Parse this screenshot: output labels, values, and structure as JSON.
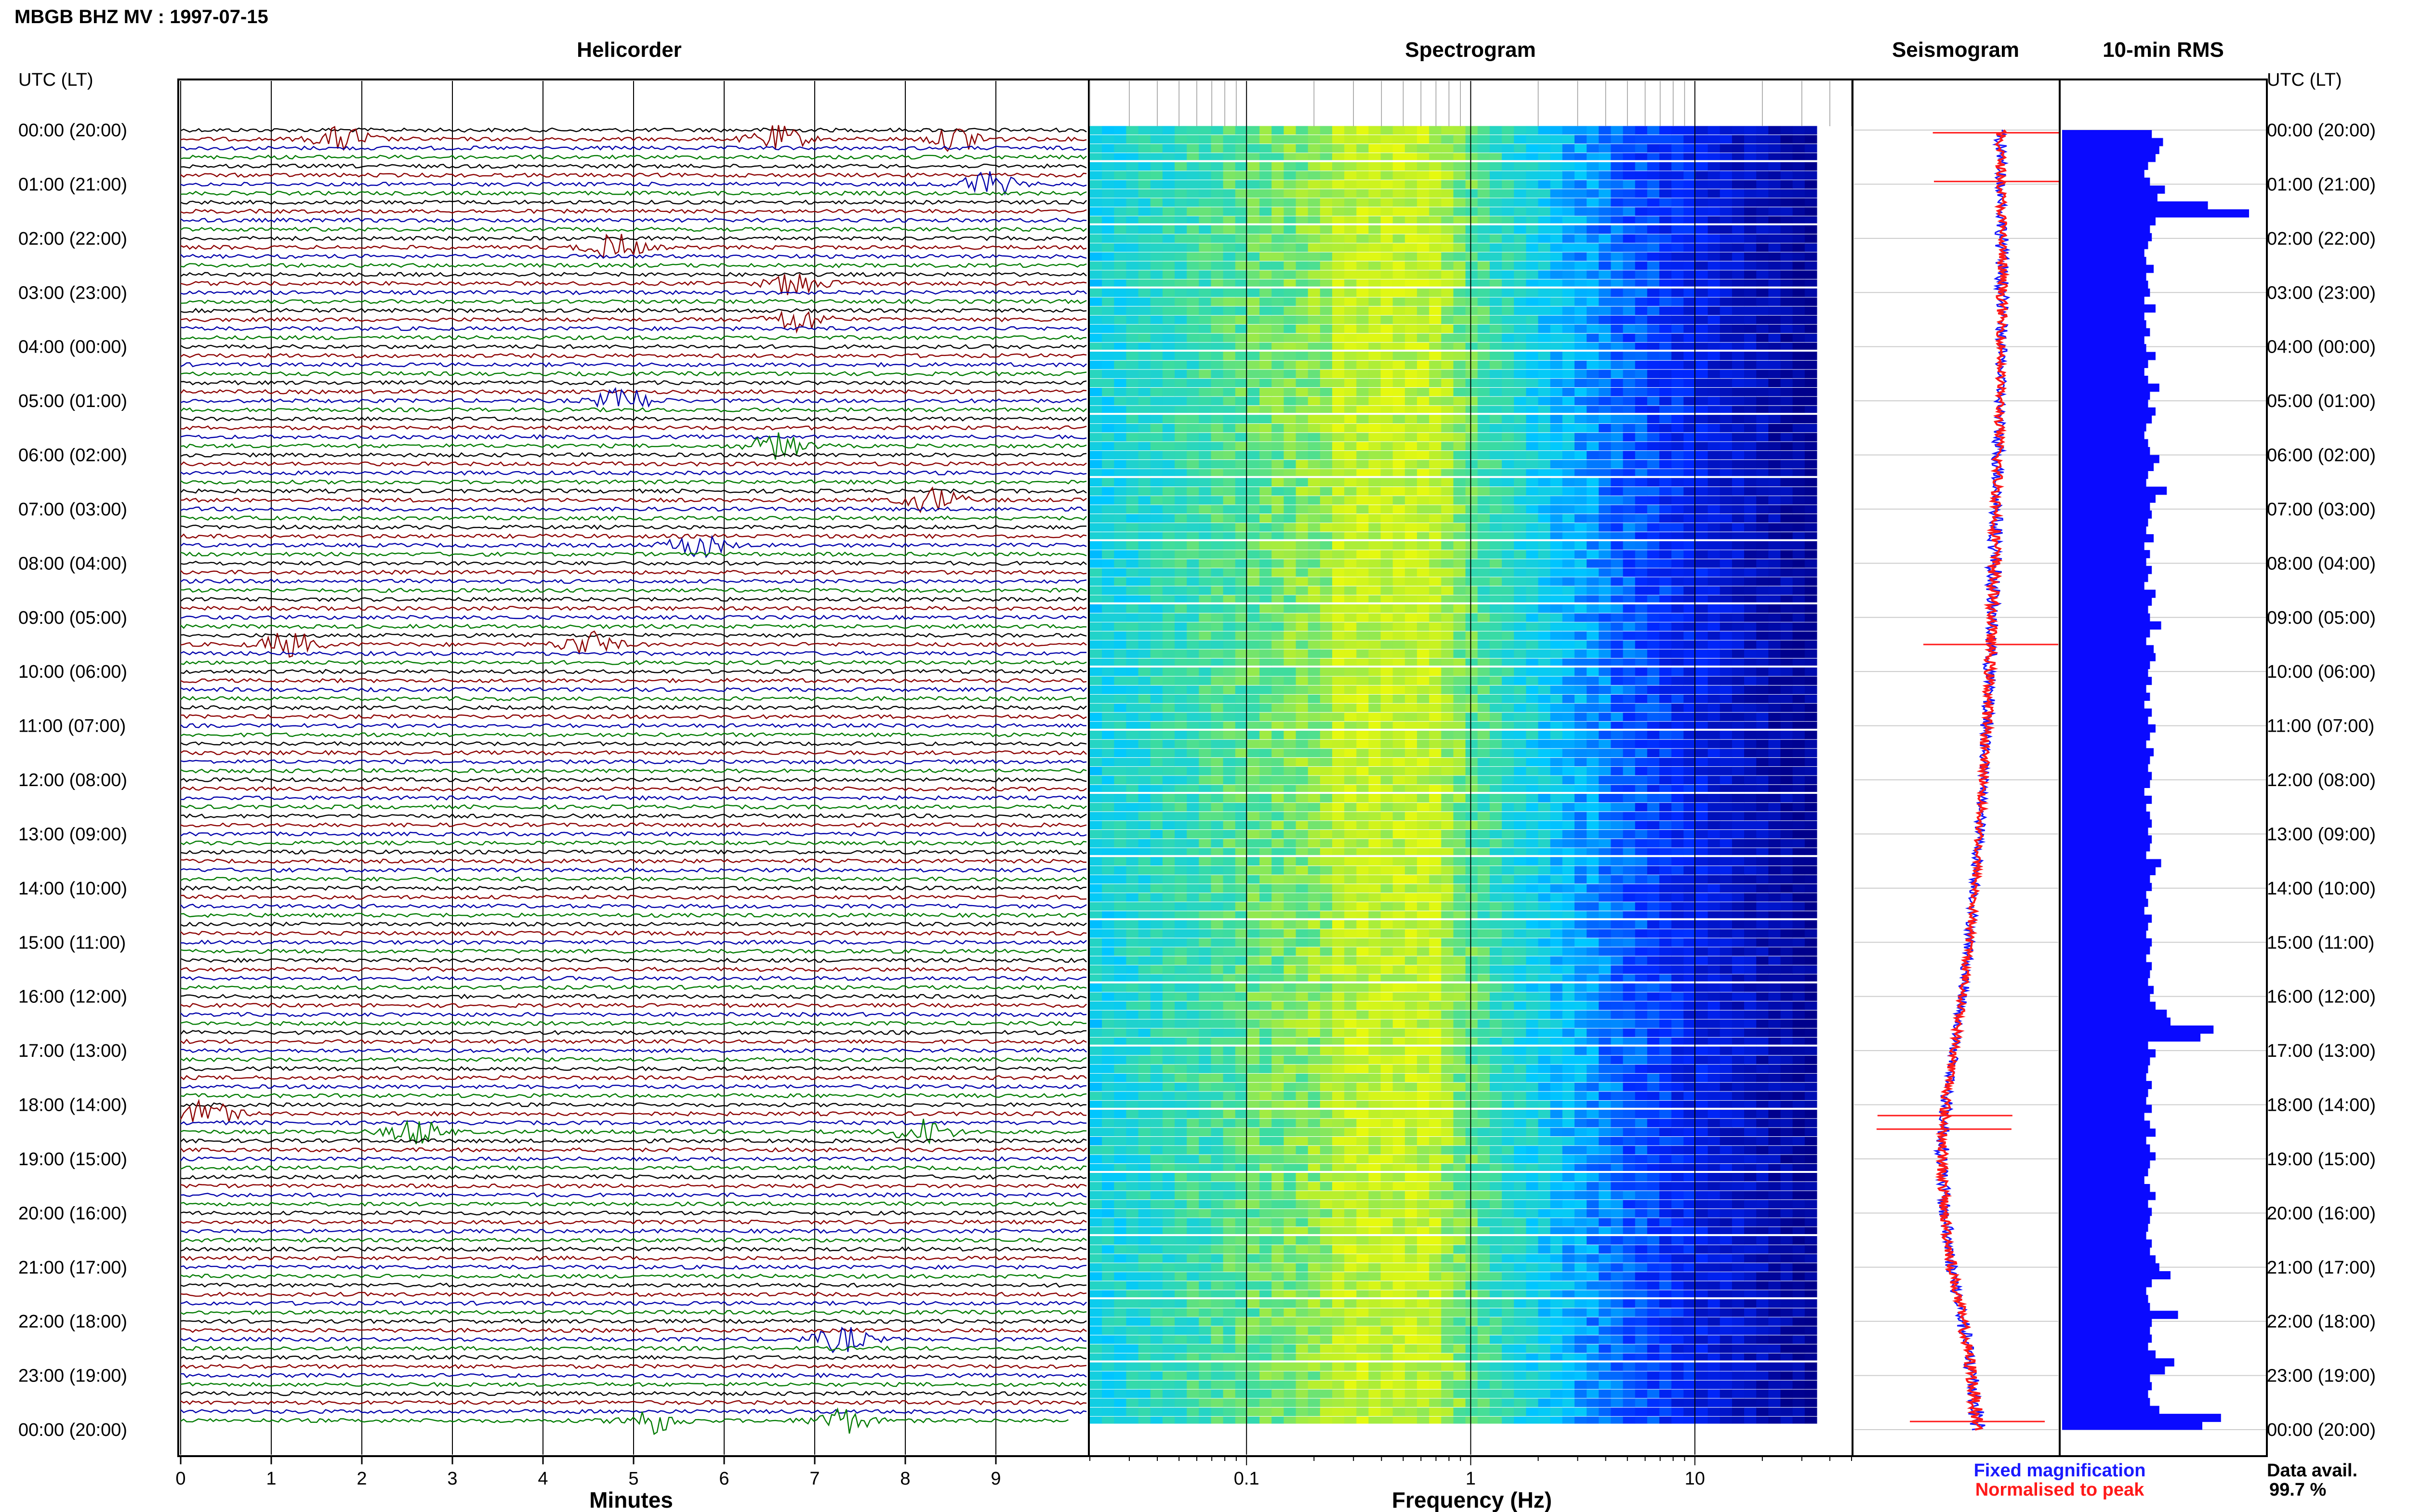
{
  "header": {
    "title": "MBGB BHZ MV : 1997-07-15",
    "utc_label_left": "UTC (LT)",
    "utc_label_right": "UTC (LT)"
  },
  "panels": {
    "helicorder": "Helicorder",
    "spectrogram": "Spectrogram",
    "seismogram": "Seismogram",
    "rms": "10-min RMS"
  },
  "time_labels": [
    "00:00 (20:00)",
    "01:00 (21:00)",
    "02:00 (22:00)",
    "03:00 (23:00)",
    "04:00 (00:00)",
    "05:00 (01:00)",
    "06:00 (02:00)",
    "07:00 (03:00)",
    "08:00 (04:00)",
    "09:00 (05:00)",
    "10:00 (06:00)",
    "11:00 (07:00)",
    "12:00 (08:00)",
    "13:00 (09:00)",
    "14:00 (10:00)",
    "15:00 (11:00)",
    "16:00 (12:00)",
    "17:00 (13:00)",
    "18:00 (14:00)",
    "19:00 (15:00)",
    "20:00 (16:00)",
    "21:00 (17:00)",
    "22:00 (18:00)",
    "23:00 (19:00)",
    "00:00 (20:00)"
  ],
  "helicorder_axis": {
    "ticks": [
      "0",
      "1",
      "2",
      "3",
      "4",
      "5",
      "6",
      "7",
      "8",
      "9"
    ],
    "label": "Minutes"
  },
  "spectrogram_axis": {
    "ticks": [
      "0.1",
      "1",
      "10"
    ],
    "label": "Frequency (Hz)",
    "scale": "log"
  },
  "legend": {
    "fixed": "Fixed magnification",
    "normalised": "Normalised to peak",
    "fixed_color": "#1a1aff",
    "normalised_color": "#ff1a1a"
  },
  "data_avail": {
    "label": "Data avail.",
    "value": "99.7 %"
  },
  "colors": {
    "trace_colors": [
      "#000000",
      "#8b0000",
      "#0000aa",
      "#007a00"
    ],
    "rms_bar": "#0a0aff",
    "spectro_low": "#00008b",
    "spectro_high": "#ffff00"
  },
  "chart_data": [
    {
      "type": "line",
      "title": "Helicorder",
      "xlabel": "Minutes",
      "xlim": [
        0,
        10
      ],
      "rows_per_hour": 6,
      "hours": 24,
      "events": [
        {
          "hour": 0.15,
          "minute": 1.8
        },
        {
          "hour": 0.2,
          "minute": 6.6
        },
        {
          "hour": 0.15,
          "minute": 8.6
        },
        {
          "hour": 1.0,
          "minute": 8.9
        },
        {
          "hour": 2.1,
          "minute": 4.8
        },
        {
          "hour": 2.9,
          "minute": 6.8
        },
        {
          "hour": 3.5,
          "minute": 6.8
        },
        {
          "hour": 5.0,
          "minute": 4.9
        },
        {
          "hour": 5.8,
          "minute": 6.6
        },
        {
          "hour": 6.9,
          "minute": 8.3
        },
        {
          "hour": 7.7,
          "minute": 5.7
        },
        {
          "hour": 9.5,
          "minute": 1.2
        },
        {
          "hour": 9.5,
          "minute": 4.5
        },
        {
          "hour": 18.1,
          "minute": 0.3
        },
        {
          "hour": 18.5,
          "minute": 2.6
        },
        {
          "hour": 18.5,
          "minute": 8.2
        },
        {
          "hour": 22.4,
          "minute": 7.3
        },
        {
          "hour": 23.9,
          "minute": 5.2
        },
        {
          "hour": 23.8,
          "minute": 7.3
        }
      ]
    },
    {
      "type": "heatmap",
      "title": "Spectrogram",
      "xlabel": "Frequency (Hz)",
      "xscale": "log",
      "xlim": [
        0.02,
        50
      ],
      "data_until_hz": 35,
      "peak_band_hz": [
        0.25,
        0.7
      ]
    },
    {
      "type": "line",
      "title": "Seismogram",
      "series": [
        {
          "name": "Fixed magnification"
        },
        {
          "name": "Normalised to peak"
        }
      ],
      "offset_by_hour": [
        0.55,
        0.57,
        0.58,
        0.58,
        0.57,
        0.55,
        0.52,
        0.49,
        0.46,
        0.42,
        0.38,
        0.34,
        0.28,
        0.22,
        0.15,
        0.06,
        -0.05,
        -0.18,
        -0.32,
        -0.38,
        -0.34,
        -0.22,
        -0.05,
        0.1,
        0.2
      ],
      "amplitude_by_hour": [
        0.5,
        0.4,
        0.5,
        0.5,
        0.4,
        0.4,
        0.5,
        0.5,
        0.6,
        0.5,
        0.5,
        0.5,
        0.4,
        0.4,
        0.4,
        0.4,
        0.4,
        0.4,
        0.5,
        0.5,
        0.5,
        0.5,
        0.5,
        0.6,
        0.6
      ]
    },
    {
      "type": "bar",
      "title": "10-min RMS",
      "orientation": "horizontal",
      "xlim": [
        0,
        1
      ],
      "values": [
        0.48,
        0.54,
        0.52,
        0.5,
        0.46,
        0.44,
        0.47,
        0.55,
        0.51,
        0.78,
        1.0,
        0.5,
        0.47,
        0.48,
        0.46,
        0.44,
        0.45,
        0.49,
        0.45,
        0.46,
        0.47,
        0.44,
        0.5,
        0.44,
        0.45,
        0.47,
        0.44,
        0.45,
        0.5,
        0.46,
        0.44,
        0.46,
        0.52,
        0.47,
        0.46,
        0.5,
        0.48,
        0.45,
        0.44,
        0.46,
        0.47,
        0.52,
        0.49,
        0.46,
        0.45,
        0.56,
        0.5,
        0.47,
        0.48,
        0.46,
        0.45,
        0.49,
        0.44,
        0.47,
        0.45,
        0.48,
        0.46,
        0.44,
        0.5,
        0.48,
        0.46,
        0.47,
        0.53,
        0.47,
        0.45,
        0.49,
        0.5,
        0.47,
        0.46,
        0.48,
        0.45,
        0.47,
        0.44,
        0.48,
        0.46,
        0.5,
        0.47,
        0.45,
        0.49,
        0.47,
        0.46,
        0.48,
        0.47,
        0.44,
        0.48,
        0.45,
        0.47,
        0.48,
        0.46,
        0.48,
        0.47,
        0.45,
        0.53,
        0.5,
        0.47,
        0.48,
        0.45,
        0.46,
        0.44,
        0.48,
        0.46,
        0.45,
        0.48,
        0.47,
        0.45,
        0.48,
        0.47,
        0.46,
        0.49,
        0.47,
        0.5,
        0.56,
        0.58,
        0.81,
        0.74,
        0.46,
        0.5,
        0.47,
        0.46,
        0.45,
        0.48,
        0.46,
        0.45,
        0.48,
        0.44,
        0.47,
        0.5,
        0.45,
        0.47,
        0.5,
        0.47,
        0.46,
        0.44,
        0.47,
        0.5,
        0.46,
        0.48,
        0.47,
        0.46,
        0.45,
        0.48,
        0.47,
        0.5,
        0.52,
        0.58,
        0.48,
        0.45,
        0.46,
        0.47,
        0.62,
        0.48,
        0.47,
        0.48,
        0.46,
        0.5,
        0.6,
        0.55,
        0.47,
        0.48,
        0.46,
        0.47,
        0.52,
        0.85,
        0.75
      ]
    }
  ]
}
